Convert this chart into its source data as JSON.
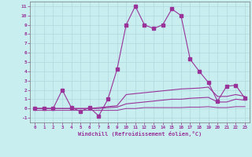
{
  "xlabel": "Windchill (Refroidissement éolien,°C)",
  "background_color": "#c8eef0",
  "grid_color": "#b0d8dc",
  "line_color": "#993399",
  "x_hours": [
    0,
    1,
    2,
    3,
    4,
    5,
    6,
    7,
    8,
    9,
    10,
    11,
    12,
    13,
    14,
    15,
    16,
    17,
    18,
    19,
    20,
    21,
    22,
    23
  ],
  "series1": [
    0.0,
    0.0,
    0.0,
    2.0,
    0.1,
    -0.3,
    0.1,
    -0.8,
    1.0,
    4.2,
    9.0,
    11.0,
    9.0,
    8.6,
    9.0,
    10.7,
    10.0,
    5.3,
    4.0,
    2.8,
    0.8,
    2.4,
    2.5,
    1.1
  ],
  "series2": [
    0.0,
    0.0,
    0.0,
    0.0,
    0.0,
    0.0,
    0.0,
    0.1,
    0.2,
    0.3,
    1.5,
    1.6,
    1.7,
    1.8,
    1.9,
    2.0,
    2.1,
    2.15,
    2.2,
    2.3,
    1.3,
    1.3,
    1.5,
    1.3
  ],
  "series3": [
    0.0,
    0.0,
    0.0,
    0.0,
    0.0,
    0.0,
    0.0,
    0.0,
    0.1,
    0.15,
    0.5,
    0.6,
    0.7,
    0.8,
    0.9,
    1.0,
    1.0,
    1.1,
    1.15,
    1.2,
    0.7,
    0.7,
    1.0,
    0.9
  ],
  "series4": [
    -0.2,
    -0.2,
    -0.2,
    -0.2,
    -0.2,
    -0.2,
    -0.2,
    -0.2,
    -0.2,
    -0.2,
    0.0,
    0.0,
    0.1,
    0.1,
    0.1,
    0.1,
    0.1,
    0.15,
    0.15,
    0.2,
    0.1,
    0.1,
    0.2,
    0.2
  ],
  "ylim": [
    -1.5,
    11.5
  ],
  "xlim": [
    -0.5,
    23.5
  ]
}
